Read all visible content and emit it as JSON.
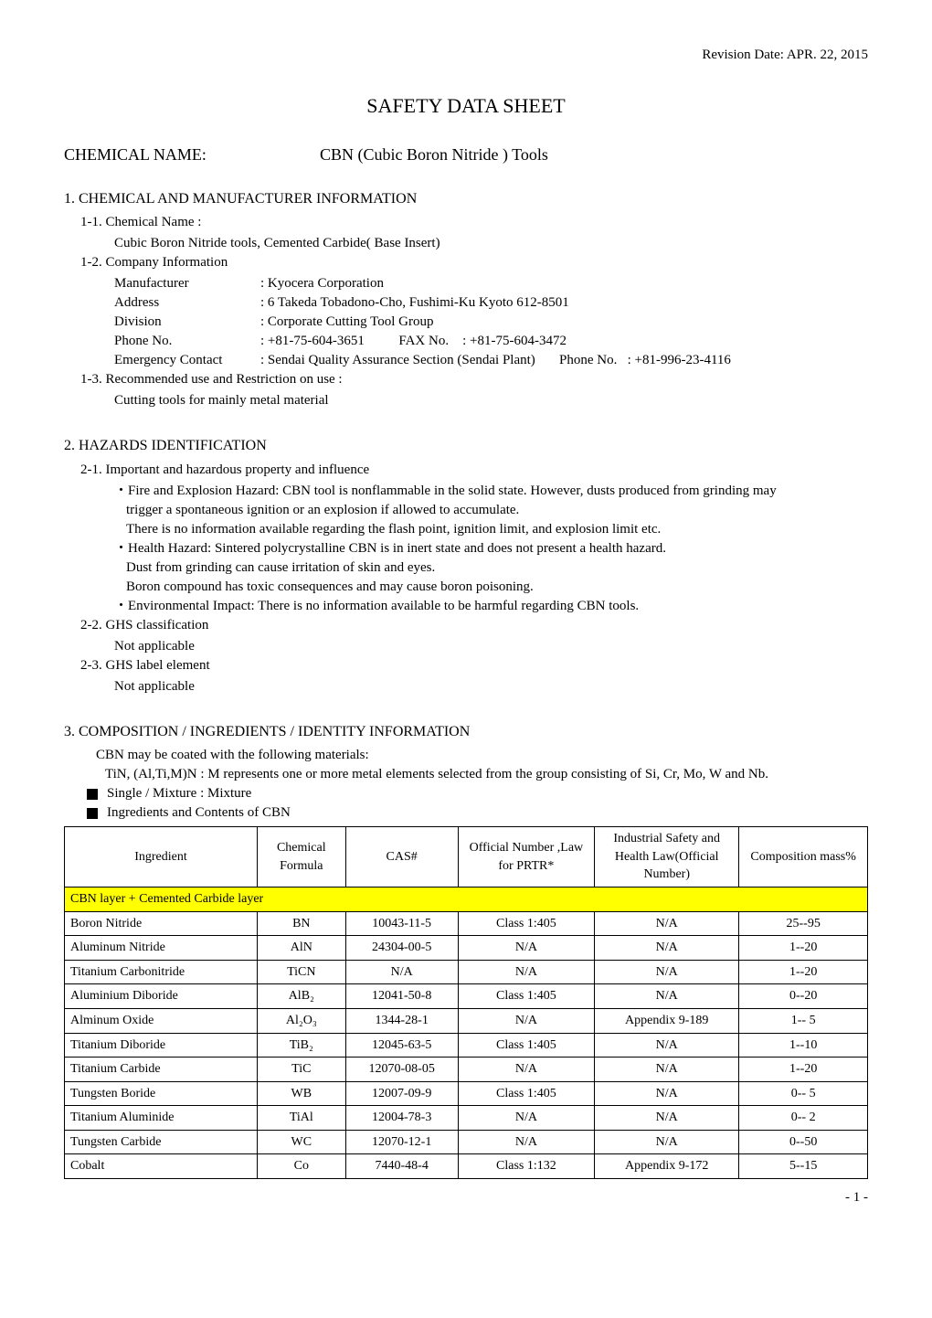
{
  "revision_date": "Revision Date: APR. 22, 2015",
  "main_title": "SAFETY DATA SHEET",
  "chem_name_label": "CHEMICAL NAME:",
  "chem_name_value": "CBN (Cubic Boron Nitride ) Tools",
  "sec1": {
    "heading": "1. CHEMICAL AND MANUFACTURER INFORMATION",
    "s11_label": "1-1. Chemical Name :",
    "s11_value": "Cubic Boron Nitride tools, Cemented Carbide( Base Insert)",
    "s12_label": "1-2. Company Information",
    "rows": [
      {
        "label": "Manufacturer",
        "value": ": Kyocera Corporation"
      },
      {
        "label": "Address",
        "value": ": 6 Takeda Tobadono-Cho, Fushimi-Ku Kyoto 612-8501"
      },
      {
        "label": "Division",
        "value": ": Corporate Cutting Tool Group"
      },
      {
        "label": "Phone No.",
        "value": ": +81-75-604-3651          FAX No.    : +81-75-604-3472"
      },
      {
        "label": "Emergency Contact",
        "value": ": Sendai Quality Assurance Section (Sendai Plant)       Phone No.   : +81-996-23-4116"
      }
    ],
    "s13_label": "1-3. Recommended use and Restriction on use :",
    "s13_value": "Cutting tools for mainly metal material"
  },
  "sec2": {
    "heading": "2. HAZARDS IDENTIFICATION",
    "s21_label": "2-1. Important and hazardous property and influence",
    "b1_l1": "・Fire and Explosion Hazard: CBN tool is nonflammable in the solid state. However, dusts produced from grinding may",
    "b1_l2": "trigger a spontaneous ignition or an explosion if allowed to accumulate.",
    "b1_l3": "There is no information available regarding the flash point, ignition limit, and explosion limit etc.",
    "b2_l1": "・Health Hazard: Sintered polycrystalline CBN is in inert state and does not present a health hazard.",
    "b2_l2": "Dust from grinding can cause irritation of skin and eyes.",
    "b2_l3": "Boron compound has toxic consequences and may cause boron poisoning.",
    "b3_l1": "・Environmental Impact: There is no information available to be harmful regarding CBN tools.",
    "s22_label": "2-2. GHS classification",
    "s22_value": "Not applicable",
    "s23_label": "2-3. GHS label element",
    "s23_value": "Not applicable"
  },
  "sec3": {
    "heading": "3. COMPOSITION / INGREDIENTS / IDENTITY INFORMATION",
    "line1": "CBN may be coated with the following materials:",
    "line2": "TiN, (Al,Ti,M)N  : M represents one or more metal elements selected from the group consisting of Si, Cr, Mo, W and Nb.",
    "sq1": "Single / Mixture   :    Mixture",
    "sq2": "Ingredients and Contents of CBN"
  },
  "table": {
    "headers": [
      "Ingredient",
      "Chemical Formula",
      "CAS#",
      "Official Number ,Law for PRTR*",
      "Industrial Safety and Health Law(Official Number)",
      "Composition mass%"
    ],
    "layer_label": "CBN layer + Cemented Carbide layer",
    "col_widths": [
      "24%",
      "11%",
      "14%",
      "17%",
      "18%",
      "16%"
    ],
    "rows": [
      {
        "ingredient": "Boron Nitride",
        "formula": "BN",
        "cas": "10043-11-5",
        "prtr": "Class 1:405",
        "ish": "N/A",
        "comp": "25--95"
      },
      {
        "ingredient": "Aluminum Nitride",
        "formula": "AlN",
        "cas": "24304-00-5",
        "prtr": "N/A",
        "ish": "N/A",
        "comp": "1--20"
      },
      {
        "ingredient": "Titanium Carbonitride",
        "formula": "TiCN",
        "cas": "N/A",
        "prtr": "N/A",
        "ish": "N/A",
        "comp": "1--20"
      },
      {
        "ingredient": "Aluminium Diboride",
        "formula": "AlB₂",
        "cas": "12041-50-8",
        "prtr": "Class 1:405",
        "ish": "N/A",
        "comp": "0--20"
      },
      {
        "ingredient": "Alminum Oxide",
        "formula": "Al₂O₃",
        "cas": "1344-28-1",
        "prtr": "N/A",
        "ish": "Appendix 9-189",
        "comp": "1-- 5"
      },
      {
        "ingredient": "Titanium Diboride",
        "formula": "TiB₂",
        "cas": "12045-63-5",
        "prtr": "Class 1:405",
        "ish": "N/A",
        "comp": "1--10"
      },
      {
        "ingredient": "Titanium Carbide",
        "formula": "TiC",
        "cas": "12070-08-05",
        "prtr": "N/A",
        "ish": "N/A",
        "comp": "1--20"
      },
      {
        "ingredient": "Tungsten Boride",
        "formula": "WB",
        "cas": "12007-09-9",
        "prtr": "Class 1:405",
        "ish": "N/A",
        "comp": "0-- 5"
      },
      {
        "ingredient": "Titanium Aluminide",
        "formula": "TiAl",
        "cas": "12004-78-3",
        "prtr": "N/A",
        "ish": "N/A",
        "comp": "0-- 2"
      },
      {
        "ingredient": "Tungsten Carbide",
        "formula": "WC",
        "cas": "12070-12-1",
        "prtr": "N/A",
        "ish": "N/A",
        "comp": "0--50"
      },
      {
        "ingredient": "Cobalt",
        "formula": "Co",
        "cas": "7440-48-4",
        "prtr": "Class 1:132",
        "ish": "Appendix 9-172",
        "comp": "5--15"
      }
    ]
  },
  "page_num": "- 1 -",
  "colors": {
    "highlight_bg": "#ffff00",
    "text": "#000000",
    "bg": "#ffffff",
    "border": "#000000"
  }
}
